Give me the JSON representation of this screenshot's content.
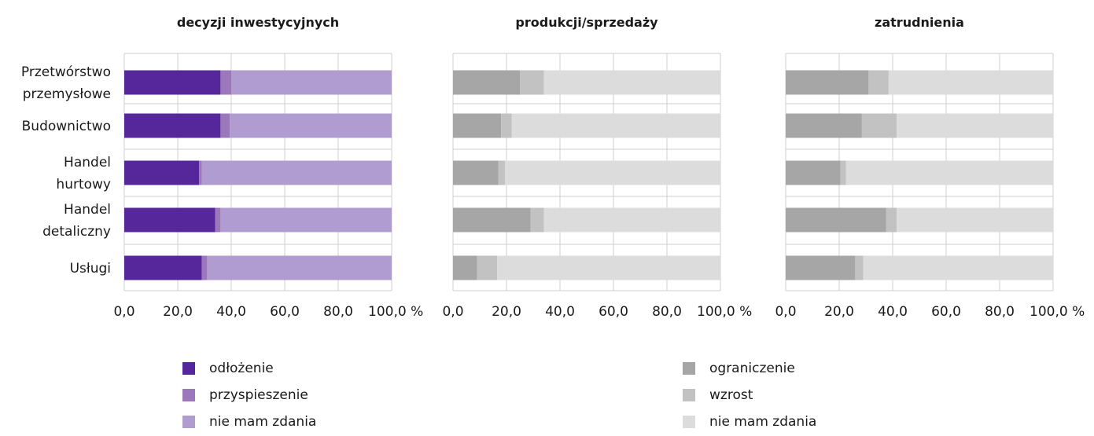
{
  "chart_data": [
    {
      "type": "bar",
      "stacked": true,
      "orientation": "horizontal",
      "title": "decyzji inwestycyjnych",
      "categories": [
        "Przetwórstwo przemysłowe",
        "Budownictwo",
        "Handel hurtowy",
        "Handel detaliczny",
        "Usługi"
      ],
      "series": [
        {
          "name": "odłożenie",
          "color": "#55279a",
          "values": [
            36,
            36,
            28,
            34,
            29
          ]
        },
        {
          "name": "przyspieszenie",
          "color": "#9d77bb",
          "values": [
            4,
            3.5,
            1,
            2,
            2
          ]
        },
        {
          "name": "nie mam zdania",
          "color": "#b09cd0",
          "values": [
            60,
            60.5,
            71,
            64,
            69
          ]
        }
      ],
      "xticks": [
        "0,0",
        "20,0",
        "40,0",
        "60,0",
        "80,0",
        "100,0 %"
      ],
      "xlim": [
        0,
        100
      ]
    },
    {
      "type": "bar",
      "stacked": true,
      "orientation": "horizontal",
      "title": "produkcji/sprzedaży",
      "categories": [
        "Przetwórstwo przemysłowe",
        "Budownictwo",
        "Handel hurtowy",
        "Handel detaliczny",
        "Usługi"
      ],
      "series": [
        {
          "name": "ograniczenie",
          "color": "#a6a6a6",
          "values": [
            25,
            18,
            17,
            29,
            9
          ]
        },
        {
          "name": "wzrost",
          "color": "#c2c2c2",
          "values": [
            9,
            4,
            2.5,
            5,
            7.5
          ]
        },
        {
          "name": "nie mam zdania",
          "color": "#dcdcdc",
          "values": [
            66,
            78,
            80.5,
            66,
            83.5
          ]
        }
      ],
      "xticks": [
        "0,0",
        "20,0",
        "40,0",
        "60,0",
        "80,0",
        "100,0 %"
      ],
      "xlim": [
        0,
        100
      ]
    },
    {
      "type": "bar",
      "stacked": true,
      "orientation": "horizontal",
      "title": "zatrudnienia",
      "categories": [
        "Przetwórstwo przemysłowe",
        "Budownictwo",
        "Handel hurtowy",
        "Handel detaliczny",
        "Usługi"
      ],
      "series": [
        {
          "name": "ograniczenie",
          "color": "#a6a6a6",
          "values": [
            31,
            28.5,
            20.5,
            37.5,
            26
          ]
        },
        {
          "name": "wzrost",
          "color": "#c2c2c2",
          "values": [
            7.5,
            13,
            2,
            4,
            3
          ]
        },
        {
          "name": "nie mam zdania",
          "color": "#dcdcdc",
          "values": [
            61.5,
            58.5,
            77.5,
            58.5,
            71
          ]
        }
      ],
      "xticks": [
        "0,0",
        "20,0",
        "40,0",
        "60,0",
        "80,0",
        "100,0 %"
      ],
      "xlim": [
        0,
        100
      ]
    }
  ],
  "category_labels": [
    [
      "Przetwórstwo",
      "przemysłowe"
    ],
    [
      "Budownictwo"
    ],
    [
      "Handel",
      "hurtowy"
    ],
    [
      "Handel",
      "detaliczny"
    ],
    [
      "Usługi"
    ]
  ],
  "legends": {
    "left": [
      {
        "label": "odłożenie",
        "color": "#55279a"
      },
      {
        "label": "przyspieszenie",
        "color": "#9d77bb"
      },
      {
        "label": "nie mam zdania",
        "color": "#b09cd0"
      }
    ],
    "right": [
      {
        "label": "ograniczenie",
        "color": "#a6a6a6"
      },
      {
        "label": "wzrost",
        "color": "#c2c2c2"
      },
      {
        "label": "nie mam zdania",
        "color": "#dcdcdc"
      }
    ]
  },
  "grid": true
}
